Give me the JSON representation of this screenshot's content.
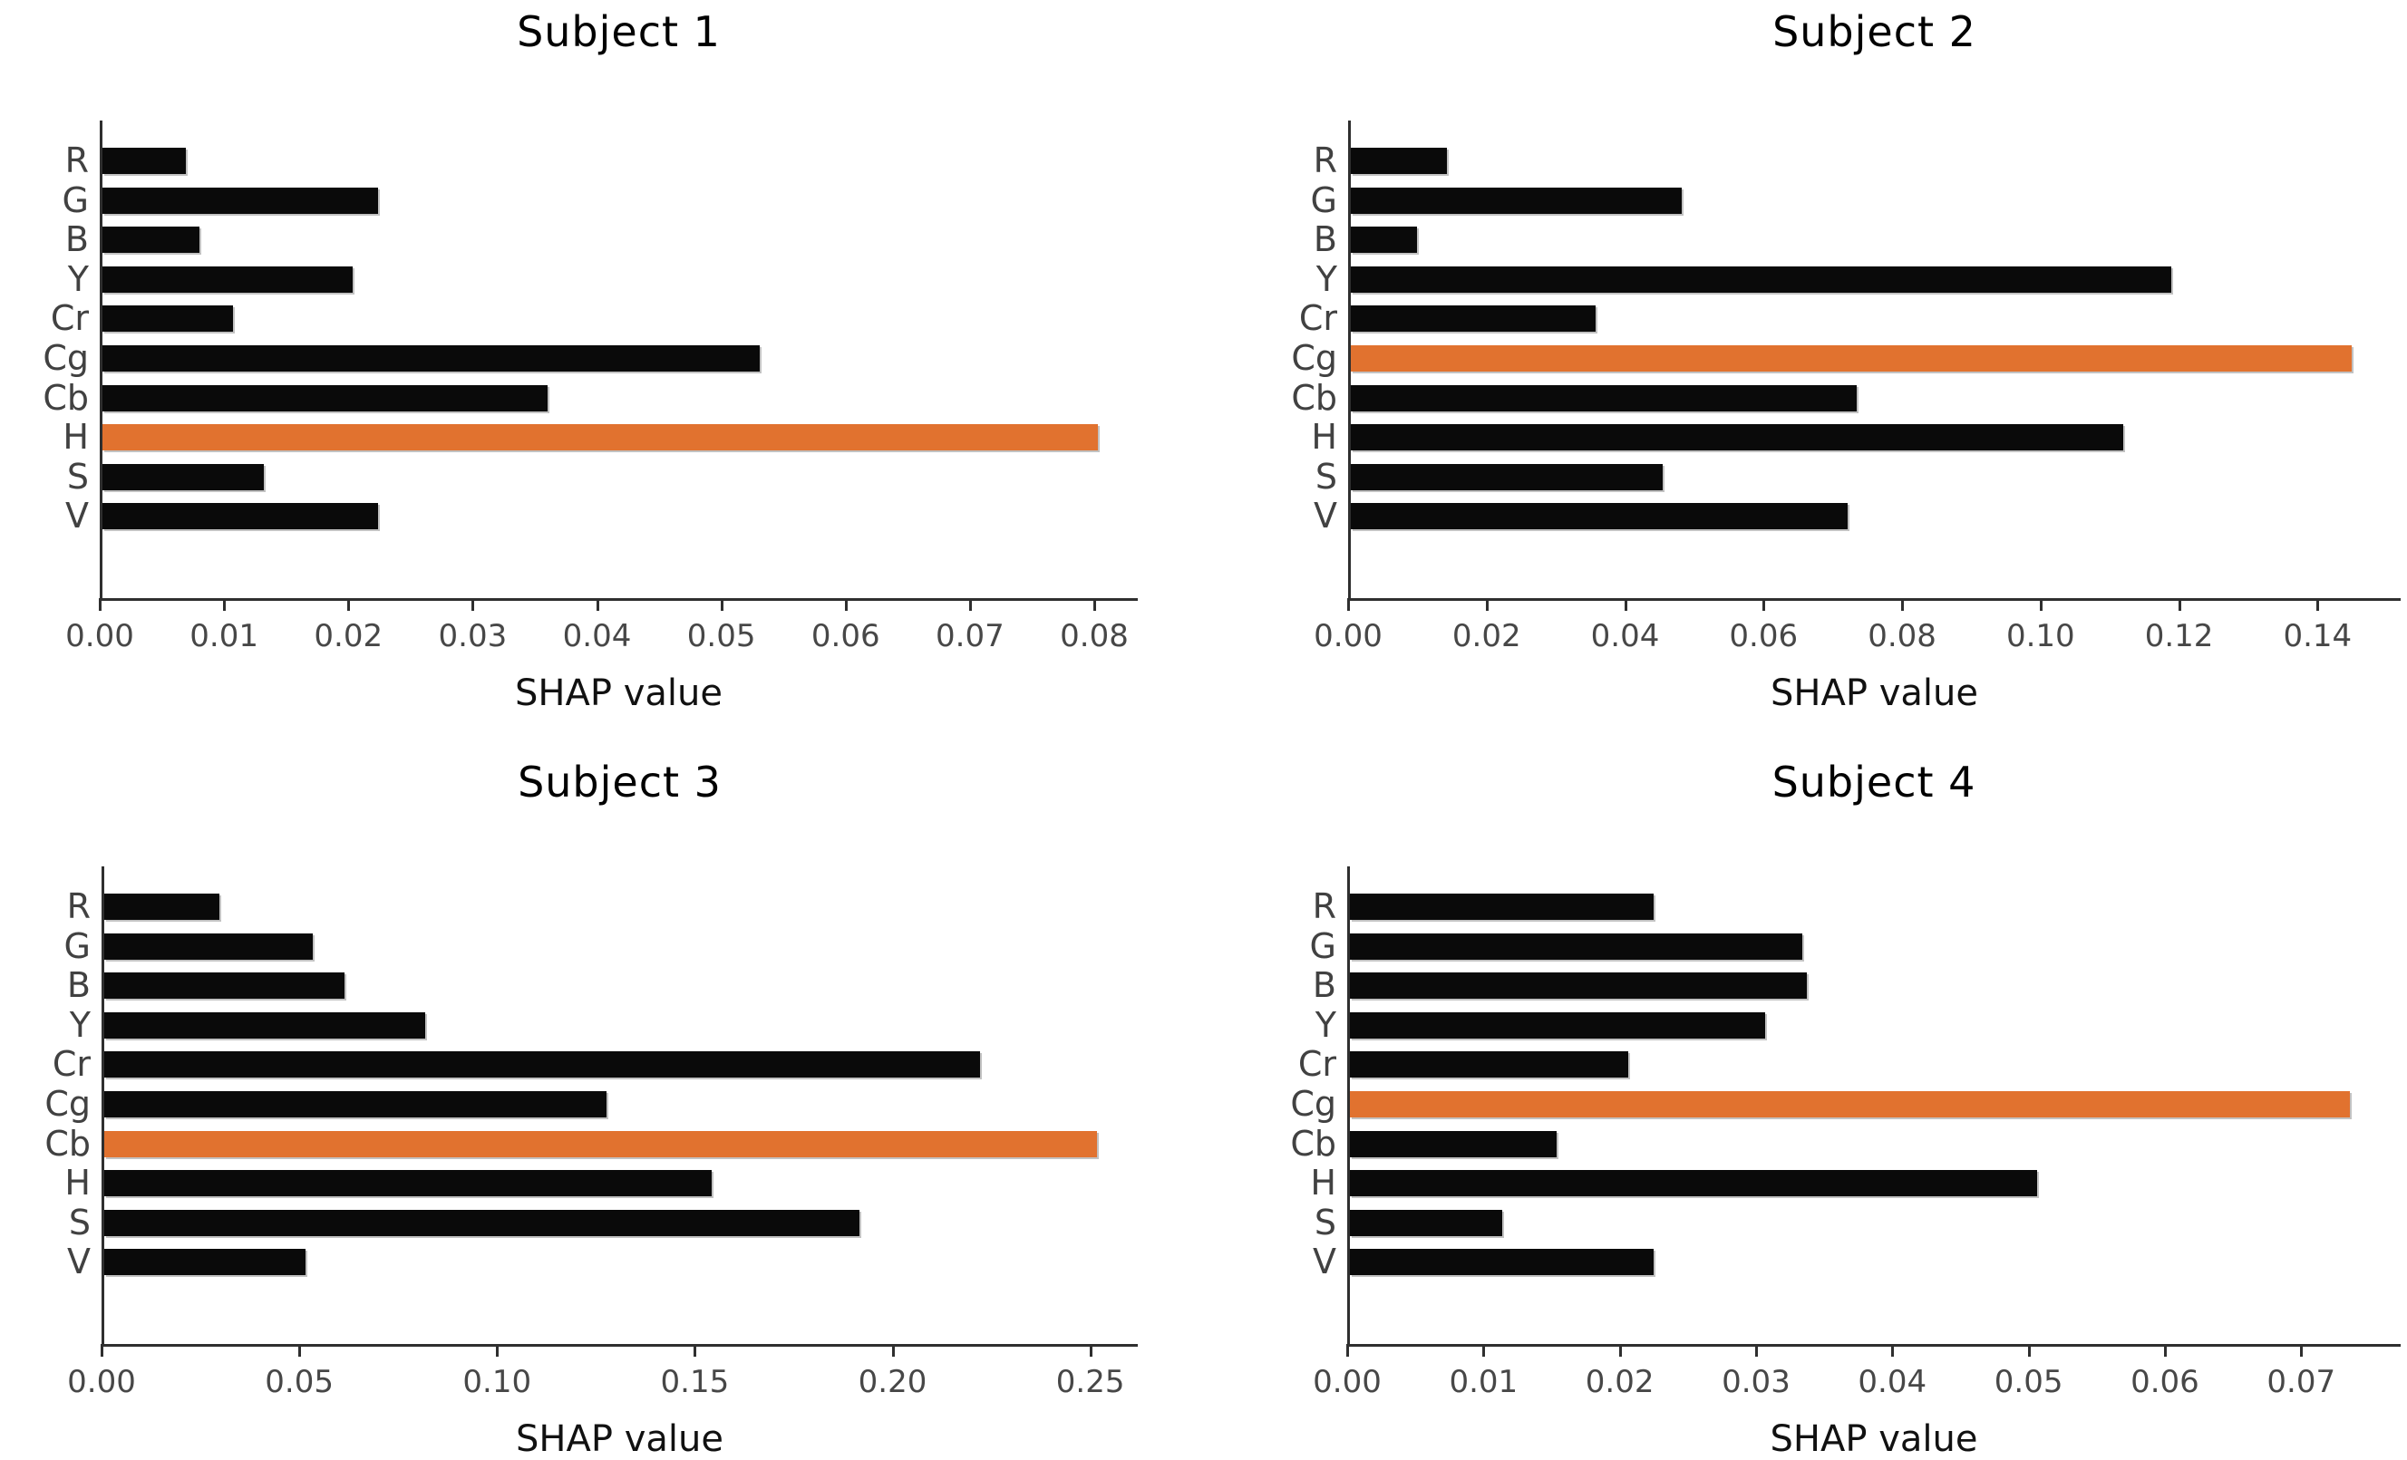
{
  "figure": {
    "background": "#ffffff",
    "bar_color": "#0a0a0a",
    "highlight_color": "#e1722f",
    "axis_color": "#2f2f2f",
    "tick_label_color": "#474747"
  },
  "chart_data": [
    {
      "type": "bar",
      "orientation": "horizontal",
      "title": "Subject 1",
      "xlabel": "SHAP value",
      "categories": [
        "R",
        "G",
        "B",
        "Y",
        "Cr",
        "Cg",
        "Cb",
        "H",
        "S",
        "V"
      ],
      "values": [
        0.0067,
        0.0222,
        0.0078,
        0.0201,
        0.0105,
        0.0529,
        0.0358,
        0.0801,
        0.013,
        0.0222
      ],
      "highlight_category": "H",
      "highlight_index": 7,
      "xticks": [
        0.0,
        0.01,
        0.02,
        0.03,
        0.04,
        0.05,
        0.06,
        0.07,
        0.08
      ],
      "xtick_labels": [
        "0.00",
        "0.01",
        "0.02",
        "0.03",
        "0.04",
        "0.05",
        "0.06",
        "0.07",
        "0.08"
      ],
      "xlim": [
        0,
        0.0835
      ],
      "grid": false,
      "legend": null
    },
    {
      "type": "bar",
      "orientation": "horizontal",
      "title": "Subject 2",
      "xlabel": "SHAP value",
      "categories": [
        "R",
        "G",
        "B",
        "Y",
        "Cr",
        "Cg",
        "Cb",
        "H",
        "S",
        "V"
      ],
      "values": [
        0.0139,
        0.0478,
        0.0096,
        0.1185,
        0.0354,
        0.1445,
        0.0731,
        0.1115,
        0.045,
        0.0717
      ],
      "highlight_category": "Cg",
      "highlight_index": 5,
      "xticks": [
        0.0,
        0.02,
        0.04,
        0.06,
        0.08,
        0.1,
        0.12,
        0.14
      ],
      "xtick_labels": [
        "0.00",
        "0.02",
        "0.04",
        "0.06",
        "0.08",
        "0.10",
        "0.12",
        "0.14"
      ],
      "xlim": [
        0,
        0.152
      ],
      "grid": false,
      "legend": null
    },
    {
      "type": "bar",
      "orientation": "horizontal",
      "title": "Subject 3",
      "xlabel": "SHAP value",
      "categories": [
        "R",
        "G",
        "B",
        "Y",
        "Cr",
        "Cg",
        "Cb",
        "H",
        "S",
        "V"
      ],
      "values": [
        0.0291,
        0.0527,
        0.0607,
        0.0811,
        0.2215,
        0.127,
        0.251,
        0.1535,
        0.191,
        0.0509
      ],
      "highlight_category": "Cb",
      "highlight_index": 6,
      "xticks": [
        0.0,
        0.05,
        0.1,
        0.15,
        0.2,
        0.25
      ],
      "xtick_labels": [
        "0.00",
        "0.05",
        "0.10",
        "0.15",
        "0.20",
        "0.25"
      ],
      "xlim": [
        0,
        0.262
      ],
      "grid": false,
      "legend": null
    },
    {
      "type": "bar",
      "orientation": "horizontal",
      "title": "Subject 4",
      "xlabel": "SHAP value",
      "categories": [
        "R",
        "G",
        "B",
        "Y",
        "Cr",
        "Cg",
        "Cb",
        "H",
        "S",
        "V"
      ],
      "values": [
        0.0223,
        0.0332,
        0.0335,
        0.0305,
        0.0204,
        0.0734,
        0.0152,
        0.0504,
        0.0112,
        0.0223
      ],
      "highlight_category": "Cg",
      "highlight_index": 5,
      "xticks": [
        0.0,
        0.01,
        0.02,
        0.03,
        0.04,
        0.05,
        0.06,
        0.07
      ],
      "xtick_labels": [
        "0.00",
        "0.01",
        "0.02",
        "0.03",
        "0.04",
        "0.05",
        "0.06",
        "0.07"
      ],
      "xlim": [
        0,
        0.0773
      ],
      "grid": false,
      "legend": null
    }
  ]
}
